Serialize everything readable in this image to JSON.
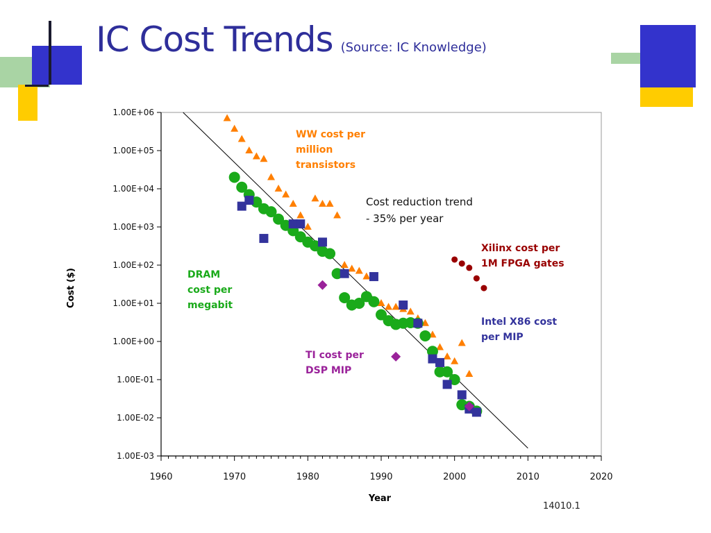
{
  "slide": {
    "title": "IC Cost Trends",
    "subtitle": "(Source: IC Knowledge)",
    "figure_ref": "14010.1"
  },
  "colors": {
    "title": "#2e2e9a",
    "deco_blue": "#3333cc",
    "deco_green": "#a9d4a4",
    "deco_yellow": "#ffcc00",
    "ww": "#ff7f00",
    "dram": "#1aaa1a",
    "intel": "#33339c",
    "xilinx": "#990000",
    "ti": "#9a229a",
    "trend": "#000000"
  },
  "chart_data": {
    "type": "scatter",
    "xlabel": "Year",
    "ylabel": "Cost ($)",
    "x_ticks": [
      "1960",
      "1970",
      "1980",
      "1990",
      "2000",
      "2010",
      "2020"
    ],
    "y_ticks": [
      "1.00E-03",
      "1.00E-02",
      "1.00E-01",
      "1.00E+00",
      "1.00E+01",
      "1.00E+02",
      "1.00E+03",
      "1.00E+04",
      "1.00E+05",
      "1.00E+06"
    ],
    "xlim": [
      1960,
      2020
    ],
    "ylim": [
      0.001,
      1000000
    ],
    "log_y": true,
    "grid": false,
    "series": [
      {
        "name": "WW cost per million transistors",
        "marker": "triangle",
        "color": "#ff7f00",
        "label_lines": [
          "WW cost per",
          "million",
          "transistors"
        ],
        "points": [
          [
            1969,
            700000
          ],
          [
            1970,
            370000
          ],
          [
            1971,
            200000
          ],
          [
            1972,
            100000
          ],
          [
            1973,
            70000
          ],
          [
            1974,
            60000
          ],
          [
            1975,
            20000
          ],
          [
            1976,
            10000
          ],
          [
            1977,
            7000
          ],
          [
            1978,
            4000
          ],
          [
            1979,
            2000
          ],
          [
            1980,
            1000
          ],
          [
            1981,
            5500
          ],
          [
            1982,
            4000
          ],
          [
            1983,
            4000
          ],
          [
            1984,
            2000
          ],
          [
            1985,
            100
          ],
          [
            1986,
            80
          ],
          [
            1987,
            70
          ],
          [
            1988,
            50
          ],
          [
            1989,
            50
          ],
          [
            1990,
            10
          ],
          [
            1991,
            8
          ],
          [
            1992,
            8
          ],
          [
            1993,
            7
          ],
          [
            1994,
            6
          ],
          [
            1995,
            4
          ],
          [
            1996,
            3
          ],
          [
            1997,
            1.5
          ],
          [
            1998,
            0.7
          ],
          [
            1999,
            0.4
          ],
          [
            2000,
            0.3
          ],
          [
            2001,
            0.9
          ],
          [
            2002,
            0.14
          ]
        ]
      },
      {
        "name": "DRAM cost per megabit",
        "marker": "circle",
        "color": "#1aaa1a",
        "label_lines": [
          "DRAM",
          "cost per",
          "megabit"
        ],
        "points": [
          [
            1970,
            20000
          ],
          [
            1971,
            11000
          ],
          [
            1972,
            7000
          ],
          [
            1973,
            4500
          ],
          [
            1974,
            3000
          ],
          [
            1975,
            2500
          ],
          [
            1976,
            1600
          ],
          [
            1977,
            1100
          ],
          [
            1978,
            800
          ],
          [
            1979,
            550
          ],
          [
            1980,
            400
          ],
          [
            1981,
            320
          ],
          [
            1982,
            230
          ],
          [
            1983,
            200
          ],
          [
            1984,
            60
          ],
          [
            1985,
            14
          ],
          [
            1986,
            9
          ],
          [
            1987,
            10
          ],
          [
            1988,
            15
          ],
          [
            1989,
            11
          ],
          [
            1990,
            5
          ],
          [
            1991,
            3.5
          ],
          [
            1992,
            2.8
          ],
          [
            1993,
            3
          ],
          [
            1994,
            3.1
          ],
          [
            1995,
            3
          ],
          [
            1996,
            1.4
          ],
          [
            1997,
            0.55
          ],
          [
            1998,
            0.16
          ],
          [
            1999,
            0.16
          ],
          [
            2000,
            0.1
          ],
          [
            2001,
            0.022
          ],
          [
            2002,
            0.02
          ],
          [
            2003,
            0.015
          ]
        ]
      },
      {
        "name": "Intel X86 cost per MIP",
        "marker": "square",
        "color": "#33339c",
        "label_lines": [
          "Intel X86 cost",
          "per MIP"
        ],
        "points": [
          [
            1971,
            3500
          ],
          [
            1972,
            5000
          ],
          [
            1974,
            500
          ],
          [
            1978,
            1200
          ],
          [
            1979,
            1200
          ],
          [
            1982,
            400
          ],
          [
            1985,
            60
          ],
          [
            1989,
            50
          ],
          [
            1993,
            9
          ],
          [
            1995,
            3
          ],
          [
            1997,
            0.35
          ],
          [
            1998,
            0.28
          ],
          [
            1999,
            0.075
          ],
          [
            2001,
            0.04
          ],
          [
            2002,
            0.017
          ],
          [
            2003,
            0.014
          ]
        ]
      },
      {
        "name": "Xilinx cost per 1M FPGA gates",
        "marker": "circle-small",
        "color": "#990000",
        "label_lines": [
          "Xilinx cost per",
          "1M FPGA gates"
        ],
        "points": [
          [
            2000,
            140
          ],
          [
            2001,
            110
          ],
          [
            2002,
            85
          ],
          [
            2003,
            45
          ],
          [
            2004,
            25
          ]
        ]
      },
      {
        "name": "TI cost per DSP MIP",
        "marker": "diamond",
        "color": "#9a229a",
        "label_lines": [
          "TI cost per",
          "DSP MIP"
        ],
        "points": [
          [
            1982,
            30
          ],
          [
            1992,
            0.4
          ],
          [
            2002,
            0.02
          ]
        ]
      }
    ],
    "trend_line": {
      "label_lines": [
        "Cost reduction trend",
        "- 35% per year"
      ],
      "points": [
        [
          1963,
          1000000
        ],
        [
          2010,
          0.0016
        ]
      ]
    }
  }
}
